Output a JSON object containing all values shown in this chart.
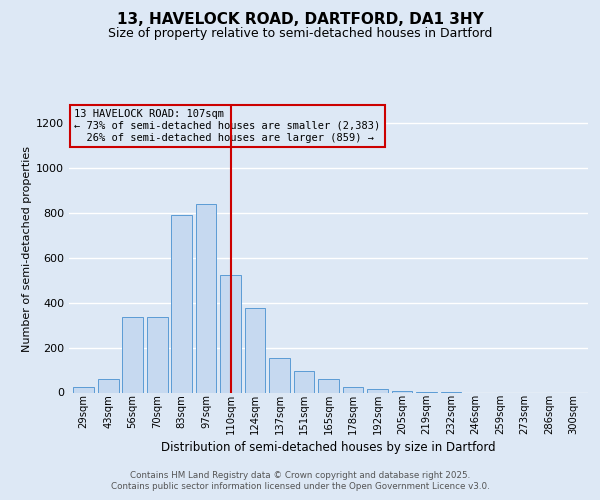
{
  "title1": "13, HAVELOCK ROAD, DARTFORD, DA1 3HY",
  "title2": "Size of property relative to semi-detached houses in Dartford",
  "xlabel": "Distribution of semi-detached houses by size in Dartford",
  "ylabel": "Number of semi-detached properties",
  "categories": [
    "29sqm",
    "43sqm",
    "56sqm",
    "70sqm",
    "83sqm",
    "97sqm",
    "110sqm",
    "124sqm",
    "137sqm",
    "151sqm",
    "165sqm",
    "178sqm",
    "192sqm",
    "205sqm",
    "219sqm",
    "232sqm",
    "246sqm",
    "259sqm",
    "273sqm",
    "286sqm",
    "300sqm"
  ],
  "values": [
    25,
    60,
    335,
    335,
    790,
    840,
    525,
    375,
    155,
    95,
    60,
    25,
    15,
    8,
    2,
    1,
    0,
    0,
    0,
    0,
    0
  ],
  "bar_color": "#c6d9f0",
  "bar_edge_color": "#5b9bd5",
  "property_index": 6,
  "property_label": "13 HAVELOCK ROAD: 107sqm",
  "pct_smaller": "73%",
  "n_smaller": "2,383",
  "pct_larger": "26%",
  "n_larger": "859",
  "vline_color": "#cc0000",
  "footer1": "Contains HM Land Registry data © Crown copyright and database right 2025.",
  "footer2": "Contains public sector information licensed under the Open Government Licence v3.0.",
  "ylim_max": 1280,
  "yticks": [
    0,
    200,
    400,
    600,
    800,
    1000,
    1200
  ],
  "background_color": "#dde8f5",
  "grid_color": "#ffffff"
}
